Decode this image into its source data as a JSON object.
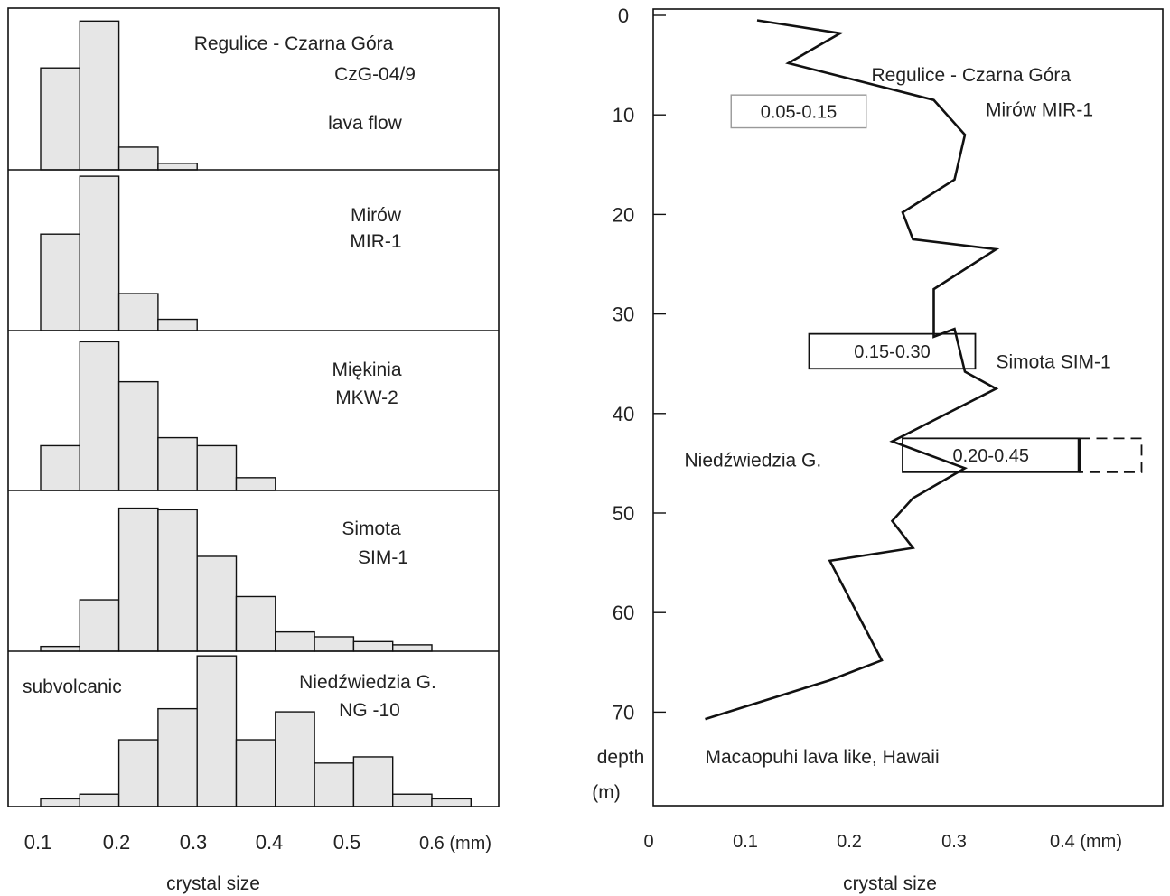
{
  "chart_data": [
    {
      "type": "bar",
      "subtype": "stacked-histograms",
      "xlabel": "crystal size",
      "x_tick_labels": [
        "0.1",
        "0.2",
        "0.3",
        "0.4",
        "0.5",
        "0.6 (mm)"
      ],
      "xlim": [
        0.1,
        0.6
      ],
      "panels": [
        {
          "label_lines": [
            "Regulice - Czarna Góra",
            "CzG-04/9",
            "lava flow"
          ],
          "bins": [
            [
              0.1,
              0.15
            ],
            [
              0.15,
              0.2
            ],
            [
              0.2,
              0.25
            ],
            [
              0.25,
              0.3
            ]
          ],
          "values": [
            0.63,
            0.92,
            0.14,
            0.04
          ]
        },
        {
          "label_lines": [
            "Mirów",
            "MIR-1"
          ],
          "bins": [
            [
              0.1,
              0.15
            ],
            [
              0.15,
              0.2
            ],
            [
              0.2,
              0.25
            ],
            [
              0.25,
              0.3
            ]
          ],
          "values": [
            0.6,
            0.96,
            0.23,
            0.07
          ]
        },
        {
          "label_lines": [
            "Miękinia",
            "MKW-2"
          ],
          "bins": [
            [
              0.1,
              0.15
            ],
            [
              0.15,
              0.2
            ],
            [
              0.2,
              0.25
            ],
            [
              0.25,
              0.3
            ],
            [
              0.3,
              0.35
            ],
            [
              0.35,
              0.4
            ]
          ],
          "values": [
            0.28,
            0.93,
            0.68,
            0.33,
            0.28,
            0.08
          ]
        },
        {
          "label_lines": [
            "Simota",
            "SIM-1"
          ],
          "bins": [
            [
              0.1,
              0.15
            ],
            [
              0.15,
              0.2
            ],
            [
              0.2,
              0.25
            ],
            [
              0.25,
              0.3
            ],
            [
              0.3,
              0.35
            ],
            [
              0.35,
              0.4
            ],
            [
              0.4,
              0.45
            ],
            [
              0.45,
              0.5
            ],
            [
              0.5,
              0.55
            ],
            [
              0.55,
              0.6
            ]
          ],
          "values": [
            0.03,
            0.32,
            0.89,
            0.88,
            0.59,
            0.34,
            0.12,
            0.09,
            0.06,
            0.04
          ]
        },
        {
          "label_lines": [
            "Niedźwiedzia G.",
            "NG -10"
          ],
          "note": "subvolcanic",
          "bins": [
            [
              0.1,
              0.15
            ],
            [
              0.15,
              0.2
            ],
            [
              0.2,
              0.25
            ],
            [
              0.25,
              0.3
            ],
            [
              0.3,
              0.35
            ],
            [
              0.35,
              0.4
            ],
            [
              0.4,
              0.45
            ],
            [
              0.45,
              0.5
            ],
            [
              0.5,
              0.55
            ],
            [
              0.55,
              0.6
            ],
            [
              0.6,
              0.65
            ]
          ],
          "values": [
            0.05,
            0.08,
            0.43,
            0.63,
            0.97,
            0.43,
            0.61,
            0.28,
            0.32,
            0.08,
            0.05
          ]
        }
      ]
    },
    {
      "type": "line",
      "xlabel": "crystal size",
      "ylabel_lines": [
        "depth",
        "(m)"
      ],
      "x_tick_labels": [
        "0",
        "0.1",
        "0.2",
        "0.3",
        "0.4  (mm)"
      ],
      "x_ticks": [
        0,
        0.1,
        0.2,
        0.3,
        0.4
      ],
      "y_ticks": [
        0,
        10,
        20,
        30,
        40,
        50,
        60,
        70
      ],
      "xlim": [
        0,
        0.5
      ],
      "ylim": [
        0,
        79.5
      ],
      "y_inverted": true,
      "series": [
        {
          "points": [
            [
              0.1,
              0.5
            ],
            [
              0.18,
              1.8
            ],
            [
              0.13,
              4.8
            ],
            [
              0.27,
              8.5
            ],
            [
              0.3,
              12.0
            ],
            [
              0.29,
              16.5
            ],
            [
              0.24,
              19.8
            ],
            [
              0.25,
              22.5
            ],
            [
              0.33,
              23.5
            ],
            [
              0.27,
              27.5
            ],
            [
              0.27,
              32.3
            ],
            [
              0.29,
              31.5
            ],
            [
              0.3,
              35.8
            ],
            [
              0.33,
              37.5
            ],
            [
              0.23,
              42.8
            ],
            [
              0.3,
              45.5
            ],
            [
              0.25,
              48.5
            ],
            [
              0.23,
              50.8
            ],
            [
              0.25,
              53.5
            ],
            [
              0.17,
              54.8
            ],
            [
              0.22,
              64.8
            ],
            [
              0.17,
              66.8
            ],
            [
              0.05,
              70.7
            ]
          ]
        }
      ],
      "annotations": [
        {
          "text": "Regulice - Czarna Góra",
          "x": 0.21,
          "y": 6.0
        },
        {
          "text": "Mirów MIR-1",
          "x": 0.32,
          "y": 9.5
        },
        {
          "text": "Simota SIM-1",
          "x": 0.33,
          "y": 34.8
        },
        {
          "text": "Niedźwiedzia G.",
          "x": 0.03,
          "y": 44.7
        },
        {
          "text": "Macaopuhi lava like, Hawaii",
          "x": 0.05,
          "y": 74.5
        }
      ],
      "ranges": [
        {
          "label": "0.05-0.15",
          "x0": 0.075,
          "x1": 0.205,
          "y0": 8.0,
          "y1": 11.3,
          "style": "gray"
        },
        {
          "label": "0.15-0.30",
          "x0": 0.15,
          "x1": 0.31,
          "y0": 32.0,
          "y1": 35.5,
          "style": "solid"
        },
        {
          "label": "0.20-0.45",
          "x0": 0.24,
          "x1": 0.41,
          "y0": 42.5,
          "y1": 45.9,
          "style": "solid",
          "dashed_to": 0.47
        }
      ]
    }
  ]
}
